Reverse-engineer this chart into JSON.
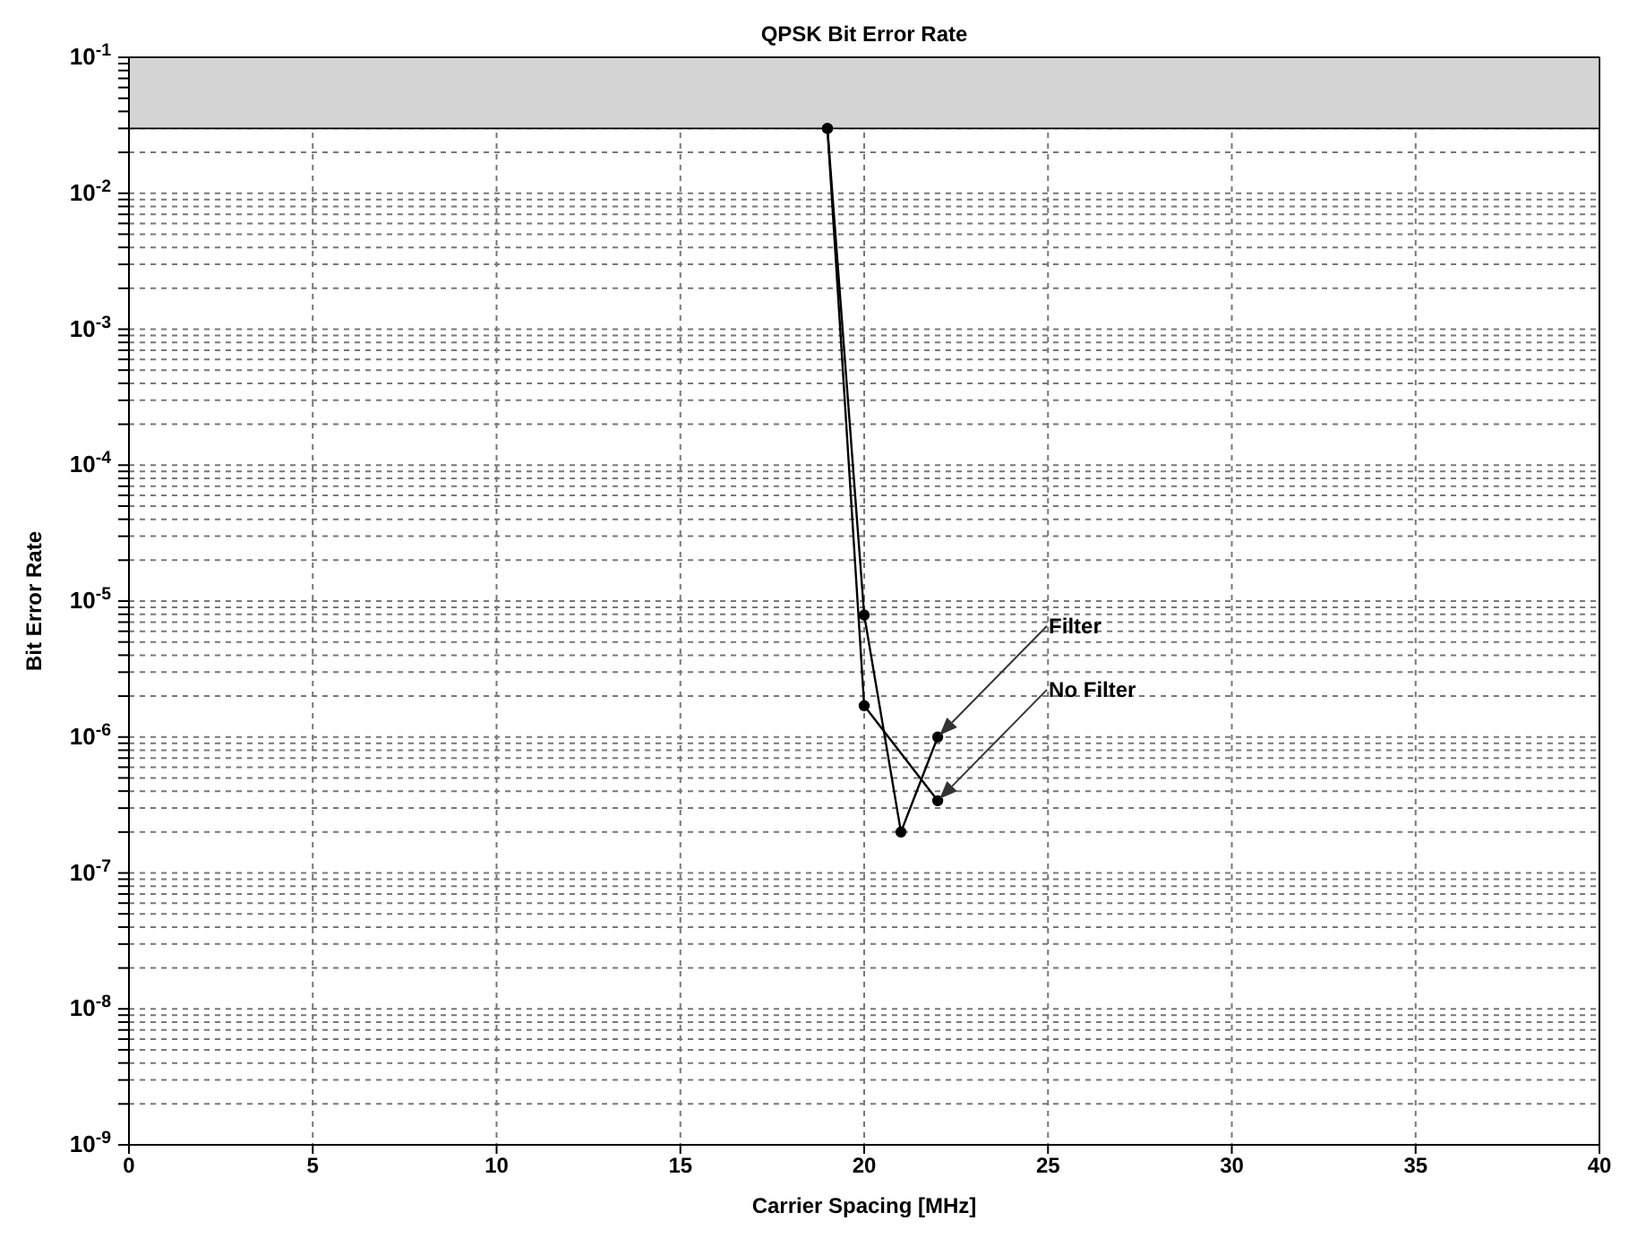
{
  "chart_data": {
    "type": "line",
    "title": "QPSK Bit Error Rate",
    "xlabel": "Carrier Spacing [MHz]",
    "ylabel": "Bit Error Rate",
    "series": [
      {
        "name": "Filter",
        "color": "#000000",
        "x": [
          19,
          20,
          21,
          22
        ],
        "values": [
          0.03,
          7.9e-06,
          2e-07,
          1e-06
        ]
      },
      {
        "name": "No Filter",
        "color": "#000000",
        "x": [
          19,
          20,
          22
        ],
        "values": [
          0.03,
          1.7e-06,
          3.4e-07
        ]
      }
    ],
    "bands": [
      {
        "axis": "y",
        "from": 0.03,
        "to": 0.1,
        "color": "#d4d4d4"
      }
    ],
    "log": "y",
    "grid": true,
    "marker": "circle",
    "line_style": "solid",
    "xlim": [
      0,
      40
    ],
    "xticks": [
      0,
      5,
      10,
      15,
      20,
      25,
      30,
      35,
      40
    ],
    "ylim": [
      1e-09,
      0.1
    ],
    "yticks": [
      {
        "value": 1e-09,
        "label": "10$^{-9}$"
      },
      {
        "value": 2e-09,
        "label": null
      },
      {
        "value": 3e-09,
        "label": null
      },
      {
        "value": 4e-09,
        "label": null
      },
      {
        "value": 5e-09,
        "label": null
      },
      {
        "value": 6e-09,
        "label": null
      },
      {
        "value": 7e-09,
        "label": null
      },
      {
        "value": 8e-09,
        "label": null
      },
      {
        "value": 9e-09,
        "label": null
      },
      {
        "value": 1e-08,
        "label": "10$^{-8}$"
      },
      {
        "value": 2e-08,
        "label": null
      },
      {
        "value": 3e-08,
        "label": null
      },
      {
        "value": 4e-08,
        "label": null
      },
      {
        "value": 5e-08,
        "label": null
      },
      {
        "value": 6e-08,
        "label": null
      },
      {
        "value": 7e-08,
        "label": null
      },
      {
        "value": 8e-08,
        "label": null
      },
      {
        "value": 9e-08,
        "label": null
      },
      {
        "value": 1e-07,
        "label": "10$^{-7}$"
      },
      {
        "value": 2e-07,
        "label": null
      },
      {
        "value": 3e-07,
        "label": null
      },
      {
        "value": 4e-07,
        "label": null
      },
      {
        "value": 5e-07,
        "label": null
      },
      {
        "value": 6e-07,
        "label": null
      },
      {
        "value": 7e-07,
        "label": null
      },
      {
        "value": 8e-07,
        "label": null
      },
      {
        "value": 9e-07,
        "label": null
      },
      {
        "value": 1e-06,
        "label": "10$^{-6}$"
      },
      {
        "value": 2e-06,
        "label": null
      },
      {
        "value": 3e-06,
        "label": null
      },
      {
        "value": 4e-06,
        "label": null
      },
      {
        "value": 5e-06,
        "label": null
      },
      {
        "value": 6e-06,
        "label": null
      },
      {
        "value": 7e-06,
        "label": null
      },
      {
        "value": 8e-06,
        "label": null
      },
      {
        "value": 9e-06,
        "label": null
      },
      {
        "value": 1e-05,
        "label": "10$^{-5}$"
      },
      {
        "value": 2e-05,
        "label": null
      },
      {
        "value": 3e-05,
        "label": null
      },
      {
        "value": 4e-05,
        "label": null
      },
      {
        "value": 5e-05,
        "label": null
      },
      {
        "value": 6e-05,
        "label": null
      },
      {
        "value": 7e-05,
        "label": null
      },
      {
        "value": 8e-05,
        "label": null
      },
      {
        "value": 9e-05,
        "label": null
      },
      {
        "value": 0.0001,
        "label": "10$^{-4}$"
      },
      {
        "value": 0.0002,
        "label": null
      },
      {
        "value": 0.0003,
        "label": null
      },
      {
        "value": 0.0004,
        "label": null
      },
      {
        "value": 0.0005,
        "label": null
      },
      {
        "value": 0.0006,
        "label": null
      },
      {
        "value": 0.0007,
        "label": null
      },
      {
        "value": 0.0008,
        "label": null
      },
      {
        "value": 0.0009,
        "label": null
      },
      {
        "value": 0.001,
        "label": "10$^{-3}$"
      },
      {
        "value": 0.002,
        "label": null
      },
      {
        "value": 0.003,
        "label": null
      },
      {
        "value": 0.004,
        "label": null
      },
      {
        "value": 0.005,
        "label": null
      },
      {
        "value": 0.006,
        "label": null
      },
      {
        "value": 0.007,
        "label": null
      },
      {
        "value": 0.008,
        "label": null
      },
      {
        "value": 0.009,
        "label": null
      },
      {
        "value": 0.01,
        "label": "10$^{-2}$"
      },
      {
        "value": 0.02,
        "label": null
      },
      {
        "value": 0.03,
        "label": null
      },
      {
        "value": 0.04,
        "label": null
      },
      {
        "value": 0.05,
        "label": null
      },
      {
        "value": 0.06,
        "label": null
      },
      {
        "value": 0.07,
        "label": null
      },
      {
        "value": 0.08,
        "label": null
      },
      {
        "value": 0.09,
        "label": null
      },
      {
        "value": 0.1,
        "label": "10$^{-1}$"
      }
    ]
  }
}
